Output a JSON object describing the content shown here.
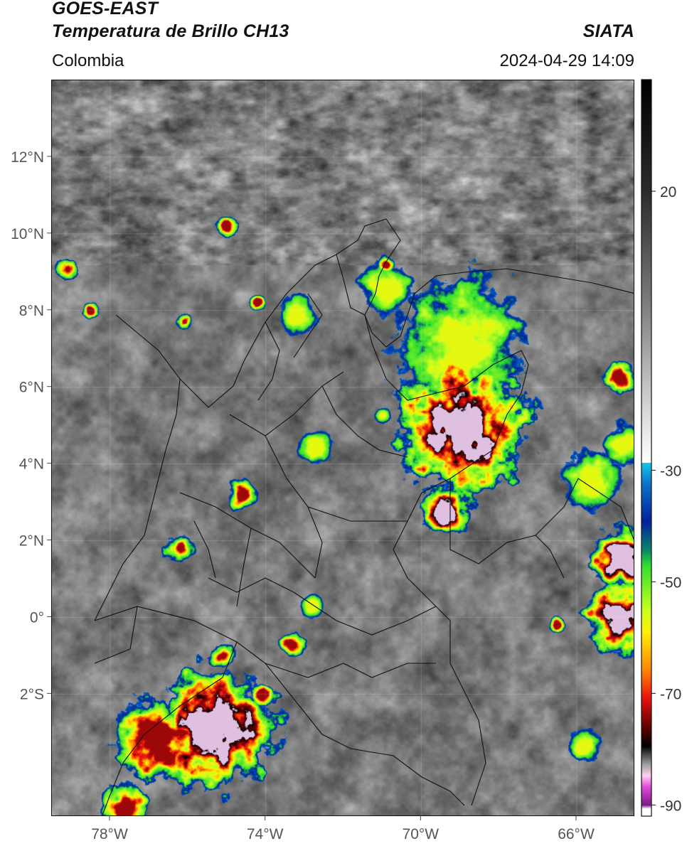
{
  "header": {
    "line1": "GOES-EAST",
    "line2": "Temperatura de Brillo CH13",
    "agency": "SIATA",
    "region": "Colombia",
    "datetime": "2024-04-29 14:09"
  },
  "map": {
    "lat_labels": [
      "12°N",
      "10°N",
      "8°N",
      "6°N",
      "4°N",
      "2°N",
      "0°",
      "2°S"
    ],
    "lat_values": [
      12,
      10,
      8,
      6,
      4,
      2,
      0,
      -2
    ],
    "lon_labels": [
      "78°W",
      "74°W",
      "70°W",
      "66°W"
    ],
    "lon_values": [
      -78,
      -74,
      -70,
      -66
    ],
    "lon_range": [
      -79.5,
      -64.5
    ],
    "lat_range": [
      -5.2,
      14.0
    ],
    "features": [
      "Colombia department borders",
      "national borders",
      "coastline",
      "cloud-top brightness temperature imagery"
    ]
  },
  "colorbar": {
    "ticks": [
      "20",
      "-30",
      "-50",
      "-70",
      "-90"
    ],
    "tick_values": [
      20,
      -30,
      -50,
      -70,
      -90
    ],
    "range": [
      -92,
      40
    ],
    "colors": {
      "warm_top": "#000000",
      "warm_gray": "#7a7a7a",
      "white": "#ffffff",
      "cyan": "#13c7e6",
      "blue": "#00209a",
      "green": "#2fe02f",
      "yellow": "#fff000",
      "red": "#e81010",
      "dark_red": "#5a0000",
      "black": "#000000",
      "magenta": "#e04cd8",
      "purple": "#7a1a8a"
    }
  },
  "storms": [
    {
      "lon": -69.0,
      "lat": 5.0,
      "intensity": 3,
      "size": 1.6
    },
    {
      "lon": -69.4,
      "lat": 2.8,
      "intensity": 3,
      "size": 0.6
    },
    {
      "lon": -75.3,
      "lat": -2.9,
      "intensity": 3,
      "size": 1.4
    },
    {
      "lon": -76.8,
      "lat": -3.2,
      "intensity": 2,
      "size": 1.0
    },
    {
      "lon": -77.6,
      "lat": -4.9,
      "intensity": 2,
      "size": 0.5
    },
    {
      "lon": -64.8,
      "lat": 1.5,
      "intensity": 3,
      "size": 0.8
    },
    {
      "lon": -64.9,
      "lat": 0.0,
      "intensity": 3,
      "size": 0.8
    },
    {
      "lon": -69.0,
      "lat": 7.2,
      "intensity": 1,
      "size": 1.5
    },
    {
      "lon": -70.9,
      "lat": 8.6,
      "intensity": 1,
      "size": 0.6
    },
    {
      "lon": -65.6,
      "lat": 3.6,
      "intensity": 1,
      "size": 0.7
    },
    {
      "lon": -64.8,
      "lat": 4.5,
      "intensity": 1,
      "size": 0.5
    },
    {
      "lon": -74.6,
      "lat": 3.2,
      "intensity": 2,
      "size": 0.35
    },
    {
      "lon": -76.2,
      "lat": 1.8,
      "intensity": 2,
      "size": 0.35
    },
    {
      "lon": -75.1,
      "lat": -1.0,
      "intensity": 2,
      "size": 0.3
    },
    {
      "lon": -73.3,
      "lat": -0.7,
      "intensity": 2,
      "size": 0.3
    },
    {
      "lon": -72.8,
      "lat": 0.3,
      "intensity": 1,
      "size": 0.25
    },
    {
      "lon": -74.1,
      "lat": -2.0,
      "intensity": 2,
      "size": 0.25
    },
    {
      "lon": -75.0,
      "lat": 10.2,
      "intensity": 2,
      "size": 0.25
    },
    {
      "lon": -70.9,
      "lat": 9.2,
      "intensity": 2,
      "size": 0.22
    },
    {
      "lon": -78.5,
      "lat": 8.0,
      "intensity": 2,
      "size": 0.2
    },
    {
      "lon": -79.1,
      "lat": 9.1,
      "intensity": 2,
      "size": 0.25
    },
    {
      "lon": -76.1,
      "lat": 7.7,
      "intensity": 2,
      "size": 0.2
    },
    {
      "lon": -74.2,
      "lat": 8.2,
      "intensity": 2,
      "size": 0.18
    },
    {
      "lon": -64.9,
      "lat": 6.2,
      "intensity": 2,
      "size": 0.35
    },
    {
      "lon": -66.5,
      "lat": -0.2,
      "intensity": 2,
      "size": 0.2
    },
    {
      "lon": -72.7,
      "lat": 4.4,
      "intensity": 1,
      "size": 0.4
    },
    {
      "lon": -73.2,
      "lat": 7.9,
      "intensity": 1,
      "size": 0.5
    },
    {
      "lon": -65.8,
      "lat": -3.3,
      "intensity": 1,
      "size": 0.4
    },
    {
      "lon": -71.0,
      "lat": 5.3,
      "intensity": 1,
      "size": 0.2
    }
  ]
}
